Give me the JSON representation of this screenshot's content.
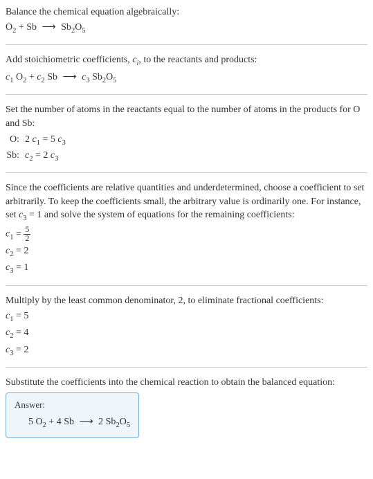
{
  "section1": {
    "title": "Balance the chemical equation algebraically:",
    "eq_lhs1": "O",
    "eq_sub1": "2",
    "eq_plus": " + Sb ",
    "eq_arrow": "⟶",
    "eq_rhs1": " Sb",
    "eq_sub2": "2",
    "eq_rhs2": "O",
    "eq_sub3": "5"
  },
  "section2": {
    "title_a": "Add stoichiometric coefficients, ",
    "title_c": "c",
    "title_i": "i",
    "title_b": ", to the reactants and products:",
    "c1": "c",
    "c1sub": "1",
    "o2": " O",
    "o2sub": "2",
    "plus": " + ",
    "c2": "c",
    "c2sub": "2",
    "sb": " Sb ",
    "arrow": "⟶",
    "sp": " ",
    "c3": "c",
    "c3sub": "3",
    "sb2": " Sb",
    "sb2sub": "2",
    "o5": "O",
    "o5sub": "5"
  },
  "section3": {
    "title": "Set the number of atoms in the reactants equal to the number of atoms in the products for O and Sb:",
    "row1_label": "O:",
    "row1_a": "2 ",
    "row1_c1": "c",
    "row1_c1sub": "1",
    "row1_eq": " = 5 ",
    "row1_c3": "c",
    "row1_c3sub": "3",
    "row2_label": "Sb:",
    "row2_c2": "c",
    "row2_c2sub": "2",
    "row2_eq": " = 2 ",
    "row2_c3": "c",
    "row2_c3sub": "3"
  },
  "section4": {
    "title_a": "Since the coefficients are relative quantities and underdetermined, choose a coefficient to set arbitrarily. To keep the coefficients small, the arbitrary value is ordinarily one. For instance, set ",
    "title_c3": "c",
    "title_c3sub": "3",
    "title_b": " = 1 and solve the system of equations for the remaining coefficients:",
    "c1": "c",
    "c1sub": "1",
    "c1eq": " = ",
    "frac_num": "5",
    "frac_den": "2",
    "c2": "c",
    "c2sub": "2",
    "c2val": " = 2",
    "c3": "c",
    "c3sub": "3",
    "c3val": " = 1"
  },
  "section5": {
    "title": "Multiply by the least common denominator, 2, to eliminate fractional coefficients:",
    "c1": "c",
    "c1sub": "1",
    "c1val": " = 5",
    "c2": "c",
    "c2sub": "2",
    "c2val": " = 4",
    "c3": "c",
    "c3sub": "3",
    "c3val": " = 2"
  },
  "section6": {
    "title": "Substitute the coefficients into the chemical reaction to obtain the balanced equation:",
    "answer_label": "Answer:",
    "five": "5 O",
    "o2sub": "2",
    "plus4": " + 4 Sb ",
    "arrow": "⟶",
    "two": " 2 Sb",
    "sb2sub": "2",
    "o5": "O",
    "o5sub": "5"
  }
}
